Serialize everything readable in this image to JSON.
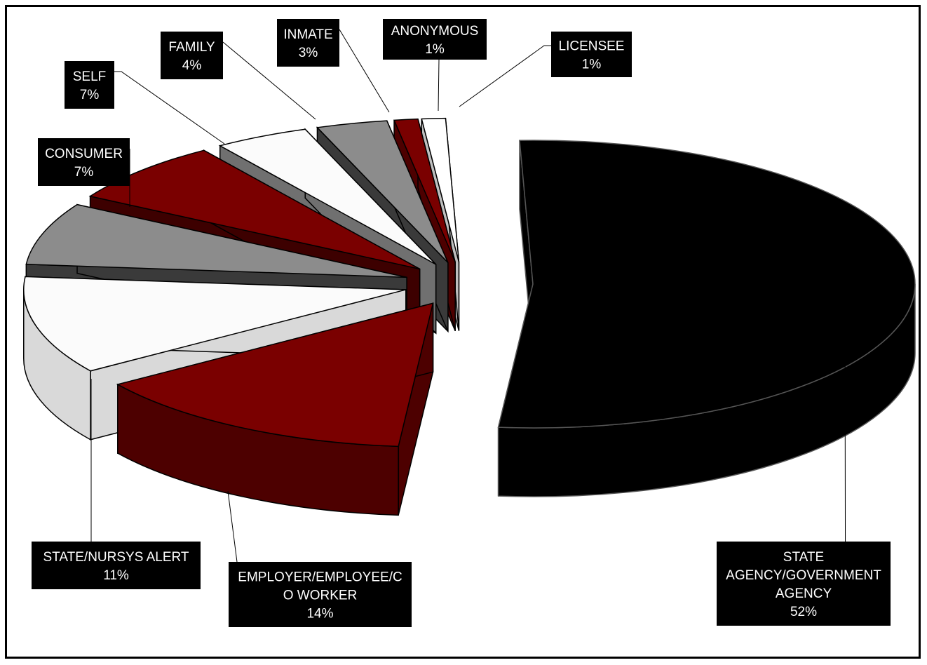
{
  "chart_data": {
    "type": "pie",
    "style": "3d-exploded",
    "slices": [
      {
        "label_lines": [
          "STATE",
          "AGENCY/GOVERNMENT",
          "AGENCY"
        ],
        "percent_label": "52%",
        "value": 52,
        "color": "#000000",
        "side": "#000000"
      },
      {
        "label_lines": [
          "EMPLOYER/EMPLOYEE/C",
          "O WORKER"
        ],
        "percent_label": "14%",
        "value": 14,
        "color": "#7a0000",
        "side": "#4d0000"
      },
      {
        "label_lines": [
          "STATE/NURSYS ALERT"
        ],
        "percent_label": "11%",
        "value": 11,
        "color": "#fbfbfb",
        "side": "#d9d9d9"
      },
      {
        "label_lines": [
          "CONSUMER"
        ],
        "percent_label": "7%",
        "value": 7,
        "color": "#8c8c8c",
        "side": "#3a3a3a"
      },
      {
        "label_lines": [
          "SELF"
        ],
        "percent_label": "7%",
        "value": 7,
        "color": "#7a0000",
        "side": "#3d0000"
      },
      {
        "label_lines": [
          "FAMILY"
        ],
        "percent_label": "4%",
        "value": 4,
        "color": "#fbfbfb",
        "side": "#707070"
      },
      {
        "label_lines": [
          "INMATE"
        ],
        "percent_label": "3%",
        "value": 3,
        "color": "#8c8c8c",
        "side": "#3a3a3a"
      },
      {
        "label_lines": [
          "ANONYMOUS"
        ],
        "percent_label": "1%",
        "value": 1,
        "color": "#7a0000",
        "side": "#4d0000"
      },
      {
        "label_lines": [
          "LICENSEE"
        ],
        "percent_label": "1%",
        "value": 1,
        "color": "#ffffff",
        "side": "#bfbfbf"
      }
    ]
  }
}
